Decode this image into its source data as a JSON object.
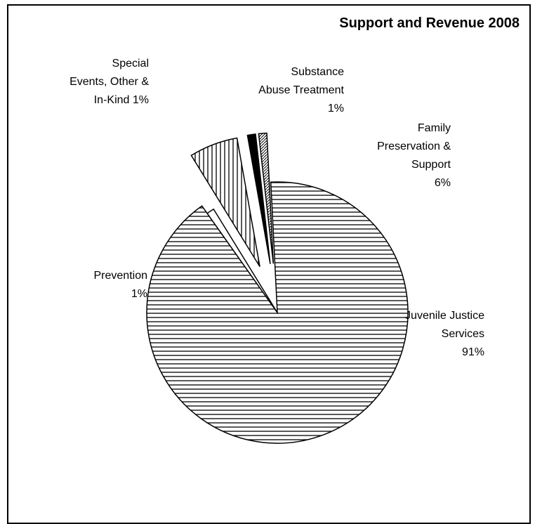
{
  "chart_data": {
    "type": "pie",
    "title": "Support and Revenue 2008",
    "slices": [
      {
        "name": "Juvenile Justice Services",
        "value": 91,
        "label_lines": [
          "Juvenile Justice",
          "Services",
          "91%"
        ],
        "pattern": "horizontal"
      },
      {
        "name": "Prevention",
        "value": 1,
        "label_lines": [
          "Prevention",
          "1%"
        ],
        "pattern": "white"
      },
      {
        "name": "Family Preservation & Support",
        "value": 6,
        "label_lines": [
          "Family",
          "Preservation &",
          "Support",
          "6%"
        ],
        "pattern": "vertical"
      },
      {
        "name": "Special Events, Other & In-Kind",
        "value": 1,
        "label_lines": [
          "Special",
          "Events, Other &",
          "In-Kind 1%"
        ],
        "pattern": "black"
      },
      {
        "name": "Substance Abuse Treatment",
        "value": 1,
        "label_lines": [
          "Substance",
          "Abuse Treatment",
          "1%"
        ],
        "pattern": "diagonal"
      }
    ],
    "colors": {
      "stroke": "#000000",
      "fill": "#ffffff"
    }
  }
}
